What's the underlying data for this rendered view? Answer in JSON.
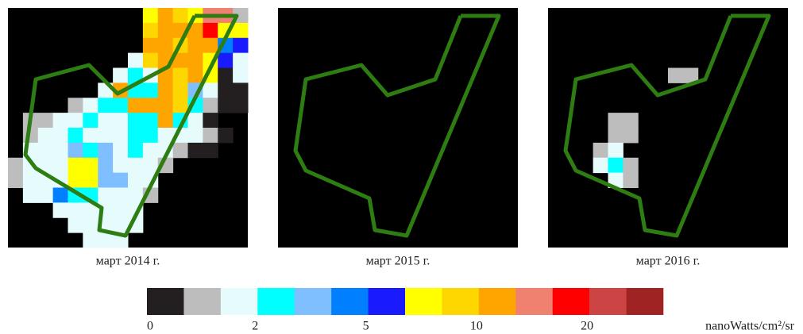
{
  "panels": [
    {
      "caption": "март 2014 г."
    },
    {
      "caption": "март 2015 г."
    },
    {
      "caption": "март 2016 г."
    }
  ],
  "colorbar": {
    "colors": [
      "#231f20",
      "#bdbdbd",
      "#e6fcfc",
      "#00ffff",
      "#80bfff",
      "#0080ff",
      "#1a1aff",
      "#ffff00",
      "#ffd700",
      "#ffa500",
      "#f08070",
      "#ff0000",
      "#cc4444",
      "#a02323"
    ],
    "ticks": [
      0,
      2,
      5,
      10,
      20
    ],
    "unit": "nanoWatts/cm²/sr"
  }
}
